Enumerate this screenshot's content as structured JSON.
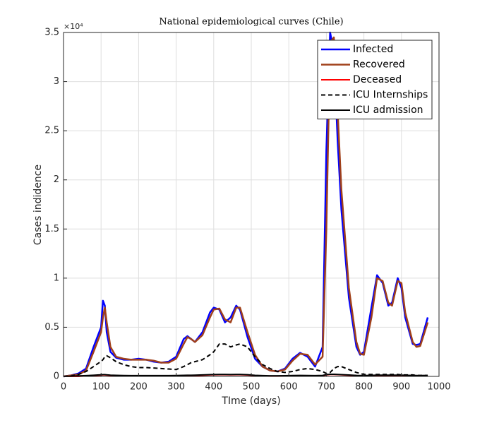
{
  "chart_data": {
    "type": "line",
    "title": "National epidemiological curves (Chile)",
    "xlabel": "TIme (days)",
    "ylabel": "Cases indidence",
    "y_exponent_label": "×10⁴",
    "x": [
      0,
      20,
      40,
      60,
      80,
      95,
      100,
      105,
      110,
      115,
      125,
      140,
      160,
      180,
      200,
      220,
      240,
      260,
      280,
      300,
      320,
      330,
      340,
      350,
      370,
      390,
      400,
      415,
      430,
      445,
      460,
      470,
      490,
      510,
      530,
      550,
      570,
      590,
      610,
      630,
      650,
      670,
      690,
      700,
      710,
      720,
      730,
      740,
      760,
      780,
      790,
      800,
      820,
      835,
      850,
      865,
      875,
      890,
      900,
      910,
      930,
      940,
      950,
      970
    ],
    "series": [
      {
        "name": "Infected",
        "color": "#0000ff",
        "dash": false,
        "width": 2.5,
        "values": [
          0,
          0.01,
          0.03,
          0.08,
          0.3,
          0.45,
          0.5,
          0.77,
          0.72,
          0.45,
          0.25,
          0.19,
          0.17,
          0.17,
          0.18,
          0.17,
          0.15,
          0.14,
          0.15,
          0.2,
          0.38,
          0.41,
          0.38,
          0.35,
          0.45,
          0.65,
          0.7,
          0.68,
          0.55,
          0.6,
          0.72,
          0.68,
          0.4,
          0.18,
          0.1,
          0.06,
          0.05,
          0.08,
          0.18,
          0.24,
          0.2,
          0.1,
          0.3,
          2.3,
          3.5,
          3.3,
          2.4,
          1.7,
          0.8,
          0.3,
          0.22,
          0.25,
          0.7,
          1.03,
          0.95,
          0.72,
          0.75,
          1.0,
          0.9,
          0.6,
          0.33,
          0.32,
          0.33,
          0.6
        ]
      },
      {
        "name": "Recovered",
        "color": "#a0401a",
        "dash": false,
        "width": 2.5,
        "values": [
          0,
          0.01,
          0.02,
          0.06,
          0.25,
          0.4,
          0.45,
          0.6,
          0.7,
          0.55,
          0.3,
          0.2,
          0.18,
          0.17,
          0.17,
          0.17,
          0.16,
          0.14,
          0.14,
          0.18,
          0.33,
          0.4,
          0.38,
          0.35,
          0.42,
          0.6,
          0.68,
          0.69,
          0.58,
          0.55,
          0.7,
          0.7,
          0.45,
          0.22,
          0.1,
          0.06,
          0.05,
          0.07,
          0.16,
          0.23,
          0.22,
          0.12,
          0.2,
          1.5,
          3.4,
          3.45,
          2.7,
          1.9,
          0.9,
          0.35,
          0.23,
          0.22,
          0.6,
          1.0,
          0.97,
          0.75,
          0.72,
          0.97,
          0.95,
          0.65,
          0.35,
          0.3,
          0.31,
          0.55
        ]
      },
      {
        "name": "Deceased",
        "color": "#ff0000",
        "dash": false,
        "width": 2,
        "values": [
          0,
          0,
          0,
          0.005,
          0.01,
          0.012,
          0.013,
          0.015,
          0.015,
          0.013,
          0.01,
          0.008,
          0.006,
          0.005,
          0.005,
          0.005,
          0.005,
          0.005,
          0.005,
          0.006,
          0.008,
          0.009,
          0.009,
          0.01,
          0.012,
          0.015,
          0.016,
          0.017,
          0.017,
          0.016,
          0.017,
          0.017,
          0.014,
          0.008,
          0.005,
          0.003,
          0.003,
          0.004,
          0.006,
          0.007,
          0.006,
          0.005,
          0.007,
          0.015,
          0.02,
          0.02,
          0.018,
          0.016,
          0.012,
          0.008,
          0.006,
          0.006,
          0.008,
          0.01,
          0.01,
          0.01,
          0.01,
          0.01,
          0.01,
          0.009,
          0.007,
          0.006,
          0.006,
          0.007
        ]
      },
      {
        "name": "ICU Internships",
        "color": "#000000",
        "dash": true,
        "width": 2,
        "values": [
          0,
          0.005,
          0.02,
          0.05,
          0.1,
          0.14,
          0.15,
          0.17,
          0.2,
          0.21,
          0.19,
          0.15,
          0.12,
          0.1,
          0.09,
          0.09,
          0.085,
          0.08,
          0.075,
          0.07,
          0.1,
          0.12,
          0.14,
          0.15,
          0.17,
          0.22,
          0.25,
          0.33,
          0.33,
          0.3,
          0.32,
          0.33,
          0.3,
          0.2,
          0.12,
          0.08,
          0.05,
          0.04,
          0.05,
          0.07,
          0.08,
          0.07,
          0.05,
          0.03,
          0.04,
          0.08,
          0.1,
          0.1,
          0.07,
          0.04,
          0.03,
          0.02,
          0.02,
          0.02,
          0.02,
          0.02,
          0.02,
          0.02,
          0.015,
          0.015,
          0.015,
          0.01,
          0.01,
          0.01
        ]
      },
      {
        "name": "ICU admission",
        "color": "#000000",
        "dash": false,
        "width": 2,
        "values": [
          0,
          0.002,
          0.005,
          0.008,
          0.012,
          0.015,
          0.016,
          0.018,
          0.018,
          0.016,
          0.013,
          0.011,
          0.009,
          0.008,
          0.008,
          0.008,
          0.008,
          0.008,
          0.008,
          0.009,
          0.011,
          0.012,
          0.012,
          0.013,
          0.015,
          0.018,
          0.019,
          0.02,
          0.02,
          0.019,
          0.02,
          0.02,
          0.017,
          0.011,
          0.008,
          0.006,
          0.006,
          0.007,
          0.009,
          0.01,
          0.009,
          0.008,
          0.01,
          0.018,
          0.022,
          0.022,
          0.02,
          0.018,
          0.014,
          0.01,
          0.009,
          0.009,
          0.011,
          0.013,
          0.013,
          0.013,
          0.013,
          0.013,
          0.013,
          0.012,
          0.01,
          0.009,
          0.009,
          0.01
        ]
      }
    ],
    "xlim": [
      0,
      1000
    ],
    "xticks": [
      0,
      100,
      200,
      300,
      400,
      500,
      600,
      700,
      800,
      900,
      1000
    ],
    "ylim": [
      0,
      3.5
    ],
    "yticks": [
      0,
      0.5,
      1,
      1.5,
      2,
      2.5,
      3,
      3.5
    ],
    "grid": true,
    "legend": "northeast"
  }
}
